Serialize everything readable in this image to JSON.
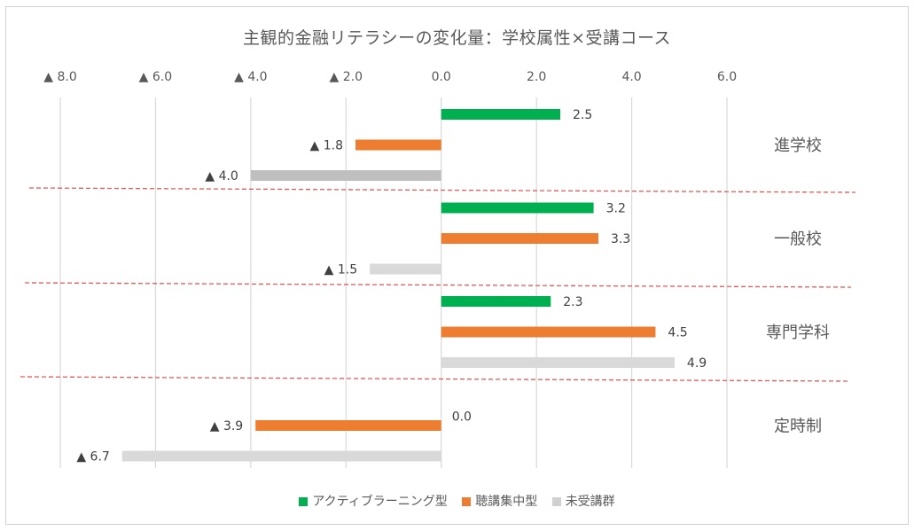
{
  "chart_data": {
    "type": "bar",
    "orientation": "horizontal",
    "title": "主観的金融リテラシーの変化量：学校属性×受講コース",
    "xlim": [
      -8,
      6
    ],
    "xticks": [
      {
        "value": -8,
        "label": "▲ 8.0"
      },
      {
        "value": -6,
        "label": "▲ 6.0"
      },
      {
        "value": -4,
        "label": "▲ 4.0"
      },
      {
        "value": -2,
        "label": "▲ 2.0"
      },
      {
        "value": 0,
        "label": "0.0"
      },
      {
        "value": 2,
        "label": "2.0"
      },
      {
        "value": 4,
        "label": "4.0"
      },
      {
        "value": 6,
        "label": "6.0"
      }
    ],
    "legend_position": "bottom",
    "categories": [
      "進学校",
      "一般校",
      "専門学科",
      "定時制"
    ],
    "series": [
      {
        "name": "アクティブラーニング型",
        "color": "#00b050",
        "values": [
          2.5,
          3.2,
          2.3,
          0.0
        ],
        "labels": [
          "2.5",
          "3.2",
          "2.3",
          "0.0"
        ]
      },
      {
        "name": "聴講集中型",
        "color": "#ed7d31",
        "values": [
          -1.8,
          3.3,
          4.5,
          -3.9
        ],
        "labels": [
          "▲ 1.8",
          "3.3",
          "4.5",
          "▲ 3.9"
        ]
      },
      {
        "name": "未受講群",
        "color": "#bfbfbf",
        "values": [
          -4.0,
          -1.5,
          4.9,
          -6.7
        ],
        "labels": [
          "▲ 4.0",
          "▲ 1.5",
          "4.9",
          "▲ 6.7"
        ]
      }
    ],
    "grid": true,
    "group_separators": "dashed-red"
  }
}
